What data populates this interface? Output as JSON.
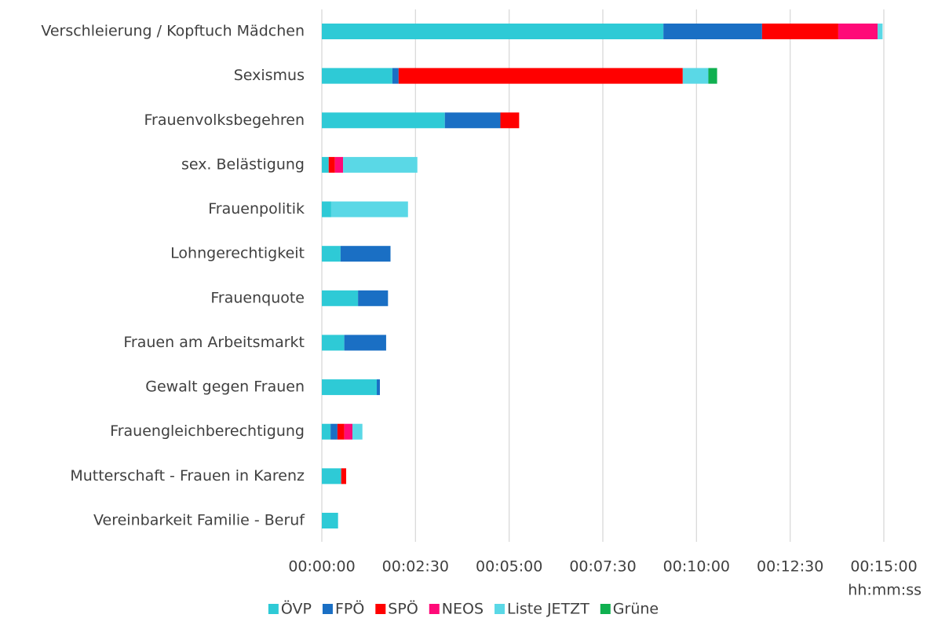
{
  "chart_data": {
    "type": "stacked_bar_horizontal",
    "x_label": "hh:mm:ss",
    "categories": [
      "Verschleierung / Kopftuch Mädchen",
      "Sexismus",
      "Frauenvolksbegehren",
      "sex. Belästigung",
      "Frauenpolitik",
      "Lohngerechtigkeit",
      "Frauenquote ",
      "Frauen am Arbeitsmarkt",
      "Gewalt gegen Frauen",
      "Frauengleichberechtigung",
      "Mutterschaft - Frauen in Karenz",
      "Vereinbarkeit Familie - Beruf"
    ],
    "series": [
      {
        "name": "ÖVP",
        "color": "#2ecad6",
        "values": [
          547,
          113,
          197,
          11,
          15,
          30,
          58,
          36,
          88,
          14,
          31,
          26
        ]
      },
      {
        "name": "FPÖ",
        "color": "#1a6fc4",
        "values": [
          158,
          10,
          89,
          0,
          0,
          80,
          48,
          67,
          5,
          11,
          0,
          0
        ]
      },
      {
        "name": "SPÖ",
        "color": "#ff0000",
        "values": [
          122,
          455,
          30,
          10,
          0,
          0,
          0,
          0,
          0,
          11,
          8,
          0
        ]
      },
      {
        "name": "NEOS",
        "color": "#ff0a78",
        "values": [
          63,
          0,
          0,
          13,
          0,
          0,
          0,
          0,
          0,
          13,
          0,
          0
        ]
      },
      {
        "name": "Liste JETZT",
        "color": "#5ad8e6",
        "values": [
          8,
          41,
          0,
          119,
          123,
          0,
          0,
          0,
          0,
          16,
          0,
          0
        ]
      },
      {
        "name": "Grüne",
        "color": "#10b050",
        "values": [
          0,
          14,
          0,
          0,
          0,
          0,
          0,
          0,
          0,
          0,
          0,
          0
        ]
      }
    ],
    "xlim": [
      0,
      900
    ],
    "xticks": [
      {
        "value": 0,
        "label": "00:00:00"
      },
      {
        "value": 150,
        "label": "00:02:30"
      },
      {
        "value": 300,
        "label": "00:05:00"
      },
      {
        "value": 450,
        "label": "00:07:30"
      },
      {
        "value": 600,
        "label": "00:10:00"
      },
      {
        "value": 750,
        "label": "00:12:30"
      },
      {
        "value": 900,
        "label": "00:15:00"
      }
    ],
    "grid": true,
    "legend": "bottom"
  }
}
